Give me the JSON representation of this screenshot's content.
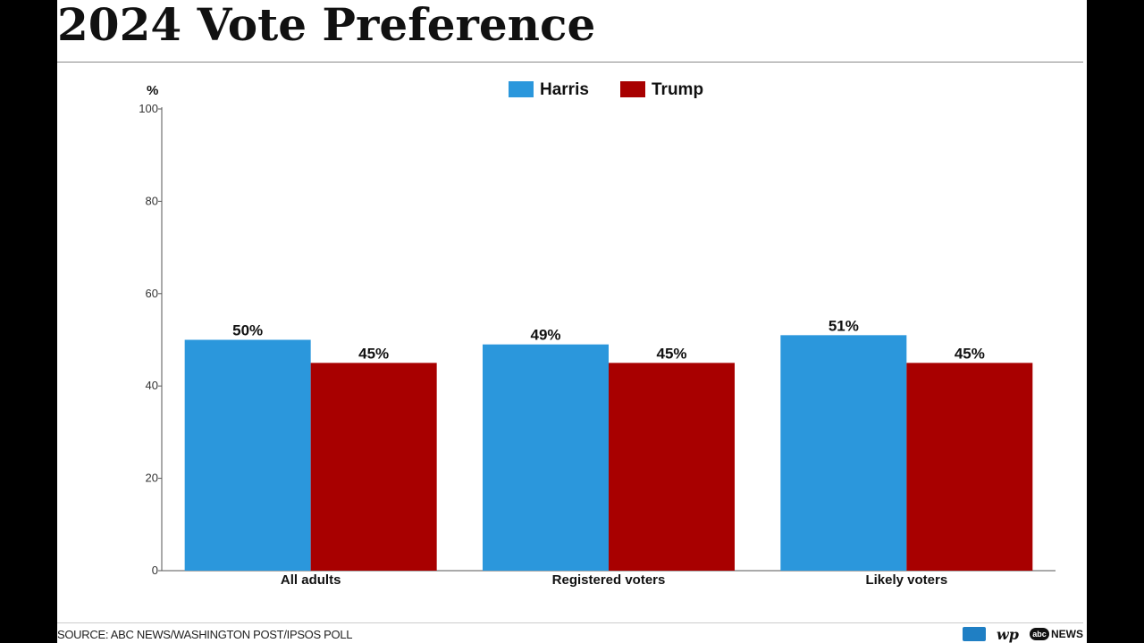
{
  "title": "2024 Vote Preference",
  "source": "SOURCE: ABC NEWS/WASHINGTON POST/IPSOS POLL",
  "logos": {
    "wp": "wp",
    "abc": "abc",
    "abc_news": "NEWS"
  },
  "colors": {
    "harris": "#2b97dc",
    "trump": "#a80000",
    "axis": "#555555"
  },
  "chart_data": {
    "type": "bar",
    "unit_label": "%",
    "categories": [
      "All adults",
      "Registered voters",
      "Likely voters"
    ],
    "series": [
      {
        "name": "Harris",
        "values": [
          50,
          49,
          51
        ],
        "labels": [
          "50%",
          "49%",
          "51%"
        ]
      },
      {
        "name": "Trump",
        "values": [
          45,
          45,
          45
        ],
        "labels": [
          "45%",
          "45%",
          "45%"
        ]
      }
    ],
    "yticks": [
      0,
      20,
      40,
      60,
      80,
      100
    ],
    "ylim": [
      0,
      100
    ],
    "grid": false,
    "legend_position": "top-center"
  }
}
